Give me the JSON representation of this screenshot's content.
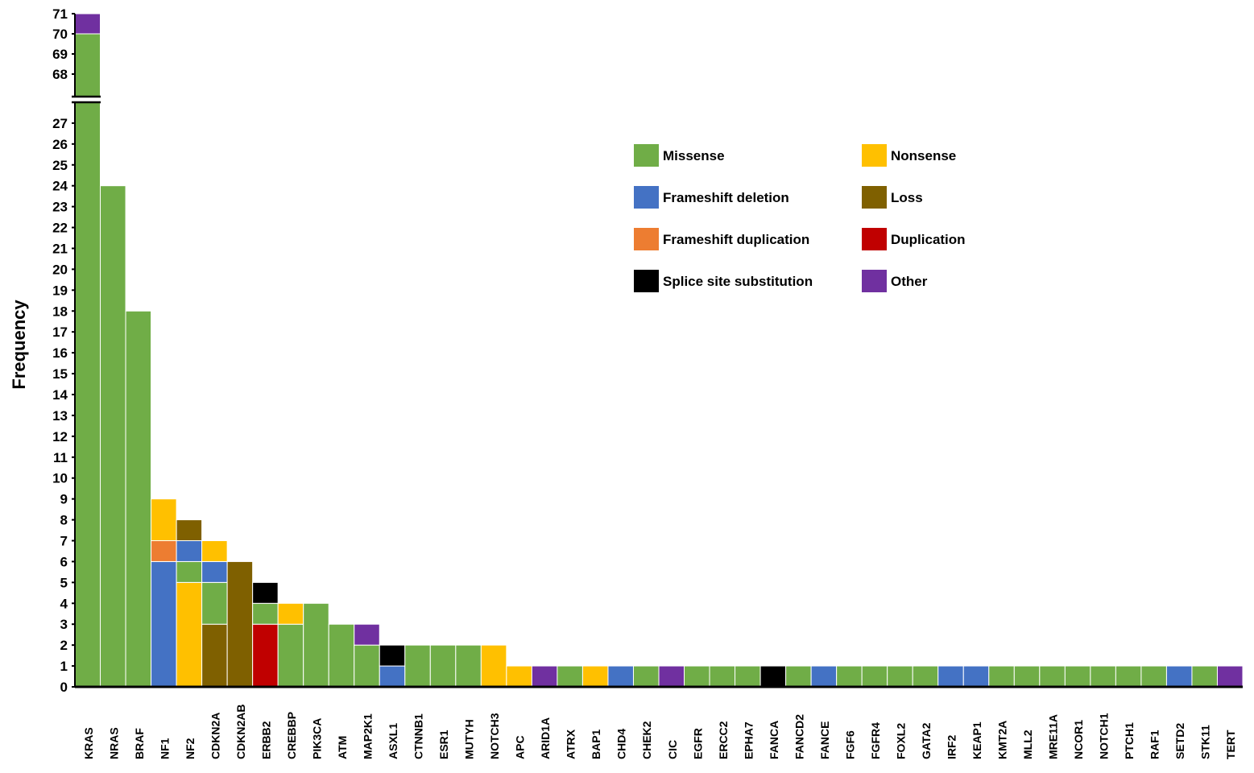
{
  "chart_data": {
    "type": "bar",
    "stacked": true,
    "title": "",
    "xlabel": "",
    "ylabel": "Frequency",
    "y_axis_break": {
      "lower_range": [
        0,
        27
      ],
      "upper_range": [
        68,
        71
      ]
    },
    "yticks_lower": [
      0,
      1,
      2,
      3,
      4,
      5,
      6,
      7,
      8,
      9,
      10,
      11,
      12,
      13,
      14,
      15,
      16,
      17,
      18,
      19,
      20,
      21,
      22,
      23,
      24,
      25,
      26,
      27
    ],
    "yticks_upper": [
      68,
      69,
      70,
      71
    ],
    "legend_placement": "top-right",
    "legend": [
      {
        "key": "missense",
        "label": "Missense",
        "color": "#70AD47"
      },
      {
        "key": "nonsense",
        "label": "Nonsense",
        "color": "#FFC000"
      },
      {
        "key": "fs_del",
        "label": "Frameshift deletion",
        "color": "#4472C4"
      },
      {
        "key": "loss",
        "label": "Loss",
        "color": "#7F6000"
      },
      {
        "key": "fs_dup",
        "label": "Frameshift duplication",
        "color": "#ED7D31"
      },
      {
        "key": "dup",
        "label": "Duplication",
        "color": "#C00000"
      },
      {
        "key": "splice",
        "label": "Splice site substitution",
        "color": "#000000"
      },
      {
        "key": "other",
        "label": "Other",
        "color": "#7030A0"
      }
    ],
    "categories": [
      "KRAS",
      "NRAS",
      "BRAF",
      "NF1",
      "NF2",
      "CDKN2A",
      "CDKN2AB",
      "ERBB2",
      "CREBBP",
      "PIK3CA",
      "ATM",
      "MAP2K1",
      "ASXL1",
      "CTNNB1",
      "ESR1",
      "MUTYH",
      "NOTCH3",
      "APC",
      "ARID1A",
      "ATRX",
      "BAP1",
      "CHD4",
      "CHEK2",
      "CIC",
      "EGFR",
      "ERCC2",
      "EPHA7",
      "FANCA",
      "FANCD2",
      "FANCE",
      "FGF6",
      "FGFR4",
      "FOXL2",
      "GATA2",
      "IRF2",
      "KEAP1",
      "KMT2A",
      "MLL2",
      "MRE11A",
      "NCOR1",
      "NOTCH1",
      "PTCH1",
      "RAF1",
      "SETD2",
      "STK11",
      "TERT"
    ],
    "stacks": [
      [
        [
          "missense",
          70
        ],
        [
          "other",
          1
        ]
      ],
      [
        [
          "missense",
          24
        ]
      ],
      [
        [
          "missense",
          18
        ]
      ],
      [
        [
          "fs_del",
          6
        ],
        [
          "fs_dup",
          1
        ],
        [
          "nonsense",
          2
        ]
      ],
      [
        [
          "nonsense",
          5
        ],
        [
          "missense",
          1
        ],
        [
          "fs_del",
          1
        ],
        [
          "loss",
          1
        ]
      ],
      [
        [
          "loss",
          3
        ],
        [
          "missense",
          2
        ],
        [
          "fs_del",
          1
        ],
        [
          "nonsense",
          1
        ]
      ],
      [
        [
          "loss",
          6
        ]
      ],
      [
        [
          "dup",
          3
        ],
        [
          "missense",
          1
        ],
        [
          "splice",
          1
        ]
      ],
      [
        [
          "missense",
          3
        ],
        [
          "nonsense",
          1
        ]
      ],
      [
        [
          "missense",
          4
        ]
      ],
      [
        [
          "missense",
          3
        ]
      ],
      [
        [
          "missense",
          2
        ],
        [
          "other",
          1
        ]
      ],
      [
        [
          "fs_del",
          1
        ],
        [
          "splice",
          1
        ]
      ],
      [
        [
          "missense",
          2
        ]
      ],
      [
        [
          "missense",
          2
        ]
      ],
      [
        [
          "missense",
          2
        ]
      ],
      [
        [
          "nonsense",
          2
        ]
      ],
      [
        [
          "nonsense",
          1
        ]
      ],
      [
        [
          "other",
          1
        ]
      ],
      [
        [
          "missense",
          1
        ]
      ],
      [
        [
          "nonsense",
          1
        ]
      ],
      [
        [
          "fs_del",
          1
        ]
      ],
      [
        [
          "missense",
          1
        ]
      ],
      [
        [
          "other",
          1
        ]
      ],
      [
        [
          "missense",
          1
        ]
      ],
      [
        [
          "missense",
          1
        ]
      ],
      [
        [
          "missense",
          1
        ]
      ],
      [
        [
          "splice",
          1
        ]
      ],
      [
        [
          "missense",
          1
        ]
      ],
      [
        [
          "fs_del",
          1
        ]
      ],
      [
        [
          "missense",
          1
        ]
      ],
      [
        [
          "missense",
          1
        ]
      ],
      [
        [
          "missense",
          1
        ]
      ],
      [
        [
          "missense",
          1
        ]
      ],
      [
        [
          "fs_del",
          1
        ]
      ],
      [
        [
          "fs_del",
          1
        ]
      ],
      [
        [
          "missense",
          1
        ]
      ],
      [
        [
          "missense",
          1
        ]
      ],
      [
        [
          "missense",
          1
        ]
      ],
      [
        [
          "missense",
          1
        ]
      ],
      [
        [
          "missense",
          1
        ]
      ],
      [
        [
          "missense",
          1
        ]
      ],
      [
        [
          "missense",
          1
        ]
      ],
      [
        [
          "fs_del",
          1
        ]
      ],
      [
        [
          "missense",
          1
        ]
      ],
      [
        [
          "other",
          1
        ]
      ]
    ]
  }
}
